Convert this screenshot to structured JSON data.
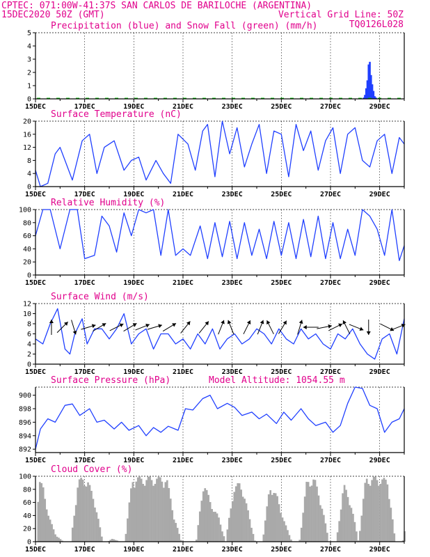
{
  "header": {
    "line1_left": "CPTEC:  071:00W-41:37S  SAN CARLOS DE BARILOCHE (ARGENTINA)",
    "line2_left": "15DEC2020 50Z (GMT)",
    "line2_right": "Vertical Grid Line: 50Z",
    "line3_right": "TQ0126L028"
  },
  "colors": {
    "series": "#1f3fff",
    "snow": "#00c000",
    "cloud": "#a9a9a9",
    "title": "#e1008c",
    "arrow": "#000000"
  },
  "x_tick_labels": [
    "15DEC",
    "17DEC",
    "19DEC",
    "21DEC",
    "23DEC",
    "25DEC",
    "27DEC",
    "29DEC"
  ],
  "chart_data": [
    {
      "type": "bar",
      "title": "Precipitation (blue) and Snow Fall (green) (mm/h)",
      "x_range_days": [
        0,
        15
      ],
      "ylim": [
        0,
        5
      ],
      "yticks": [
        0,
        1,
        2,
        3,
        4,
        5
      ],
      "series": [
        {
          "name": "Precipitation",
          "x": [
            13.35,
            13.4,
            13.45,
            13.5,
            13.55,
            13.6,
            13.65,
            13.7,
            13.75,
            13.8,
            13.85
          ],
          "values": [
            0.1,
            0.3,
            0.8,
            1.4,
            2.6,
            2.8,
            1.8,
            1.1,
            0.6,
            0.2,
            0.1
          ]
        },
        {
          "name": "Snow Fall",
          "x": [
            0,
            15
          ],
          "values": [
            0,
            0
          ]
        }
      ]
    },
    {
      "type": "line",
      "title": "Surface Temperature (nC)",
      "x_range_days": [
        0,
        15
      ],
      "ylim": [
        0,
        20
      ],
      "yticks": [
        0,
        4,
        8,
        12,
        16,
        20
      ],
      "x": [
        0,
        0.2,
        0.5,
        0.8,
        1.0,
        1.2,
        1.5,
        1.9,
        2.2,
        2.5,
        2.8,
        3.2,
        3.6,
        3.9,
        4.2,
        4.5,
        4.9,
        5.2,
        5.5,
        5.8,
        6.2,
        6.5,
        6.8,
        7.0,
        7.3,
        7.6,
        7.9,
        8.2,
        8.5,
        8.8,
        9.1,
        9.4,
        9.7,
        10.0,
        10.3,
        10.6,
        10.9,
        11.2,
        11.5,
        11.8,
        12.1,
        12.4,
        12.7,
        13.0,
        13.3,
        13.6,
        13.9,
        14.2,
        14.5,
        14.8,
        15.0
      ],
      "values": [
        5,
        0,
        1,
        10,
        12,
        8,
        2,
        14,
        16,
        4,
        12,
        14,
        5,
        8,
        9,
        2,
        8,
        4,
        1,
        16,
        13,
        5,
        17,
        19,
        3,
        20,
        10,
        18,
        6,
        13,
        19,
        4,
        17,
        16,
        3,
        19,
        11,
        17,
        5,
        14,
        18,
        4,
        16,
        18,
        8,
        6,
        14,
        16,
        4,
        15,
        13
      ]
    },
    {
      "type": "line",
      "title": "Relative Humidity (%)",
      "x_range_days": [
        0,
        15
      ],
      "ylim": [
        0,
        100
      ],
      "yticks": [
        0,
        20,
        40,
        60,
        80,
        100
      ],
      "x": [
        0,
        0.3,
        0.6,
        1.0,
        1.4,
        1.7,
        2.0,
        2.4,
        2.7,
        3.0,
        3.3,
        3.6,
        3.9,
        4.2,
        4.5,
        4.8,
        5.1,
        5.4,
        5.7,
        6.0,
        6.3,
        6.7,
        7.0,
        7.3,
        7.6,
        7.9,
        8.2,
        8.5,
        8.8,
        9.1,
        9.4,
        9.7,
        10.0,
        10.3,
        10.6,
        10.9,
        11.2,
        11.5,
        11.8,
        12.1,
        12.4,
        12.7,
        13.0,
        13.3,
        13.6,
        13.9,
        14.2,
        14.5,
        14.8,
        15.0
      ],
      "values": [
        60,
        100,
        100,
        40,
        100,
        100,
        25,
        30,
        90,
        75,
        35,
        95,
        60,
        100,
        95,
        100,
        30,
        100,
        30,
        40,
        30,
        75,
        25,
        80,
        28,
        82,
        25,
        80,
        30,
        70,
        25,
        82,
        30,
        80,
        25,
        85,
        28,
        90,
        25,
        80,
        25,
        70,
        30,
        100,
        90,
        70,
        30,
        100,
        22,
        45
      ]
    },
    {
      "type": "line",
      "title": "Surface Wind (m/s)",
      "x_range_days": [
        0,
        15
      ],
      "ylim": [
        0,
        12
      ],
      "yticks": [
        0,
        2,
        4,
        6,
        8,
        10,
        12
      ],
      "x": [
        0,
        0.3,
        0.6,
        0.9,
        1.2,
        1.4,
        1.6,
        1.9,
        2.1,
        2.4,
        2.7,
        3.0,
        3.3,
        3.6,
        3.9,
        4.2,
        4.5,
        4.8,
        5.1,
        5.4,
        5.7,
        6.0,
        6.3,
        6.6,
        6.9,
        7.2,
        7.5,
        7.8,
        8.1,
        8.4,
        8.7,
        9.0,
        9.3,
        9.6,
        9.9,
        10.2,
        10.5,
        10.8,
        11.1,
        11.4,
        11.7,
        12.0,
        12.3,
        12.6,
        12.9,
        13.2,
        13.5,
        13.8,
        14.1,
        14.4,
        14.7,
        15.0
      ],
      "values": [
        5,
        4,
        8,
        11,
        3,
        2,
        6,
        9,
        4,
        7,
        7,
        5,
        7,
        10,
        4,
        6,
        7,
        3,
        6,
        6,
        4,
        5,
        3,
        6,
        4,
        7,
        3,
        5,
        6,
        4,
        5,
        7,
        6,
        4,
        7,
        5,
        4,
        7,
        5,
        6,
        4,
        3,
        6,
        5,
        7,
        4,
        2,
        1,
        5,
        6,
        2,
        9
      ]
    },
    {
      "type": "line",
      "title": "Surface Pressure (hPa)",
      "annotation": "Model Altitude: 1054.55 m",
      "x_range_days": [
        0,
        15
      ],
      "ylim": [
        891.5,
        901.2
      ],
      "yticks": [
        892,
        894,
        896,
        898,
        900
      ],
      "x": [
        0,
        0.2,
        0.5,
        0.8,
        1.2,
        1.5,
        1.8,
        2.2,
        2.5,
        2.8,
        3.2,
        3.5,
        3.8,
        4.2,
        4.5,
        4.8,
        5.1,
        5.4,
        5.8,
        6.1,
        6.4,
        6.8,
        7.1,
        7.4,
        7.8,
        8.1,
        8.4,
        8.8,
        9.1,
        9.4,
        9.8,
        10.1,
        10.4,
        10.8,
        11.1,
        11.4,
        11.8,
        12.1,
        12.4,
        12.7,
        13.0,
        13.3,
        13.6,
        13.9,
        14.2,
        14.5,
        14.8,
        15.0
      ],
      "values": [
        892,
        895,
        896.5,
        896,
        898.5,
        898.7,
        897,
        898,
        896,
        896.3,
        895,
        896,
        894.8,
        895.5,
        894,
        895.2,
        894.5,
        895.4,
        894.8,
        898,
        897.8,
        899.5,
        900,
        898,
        898.8,
        898.2,
        897,
        897.5,
        896.5,
        897.2,
        895.8,
        897.5,
        896.3,
        898,
        896.5,
        895.5,
        896,
        894.5,
        895.5,
        898.8,
        901.2,
        901,
        898.5,
        898,
        894.5,
        896,
        896.5,
        898
      ]
    },
    {
      "type": "area",
      "title": "Cloud Cover (%)",
      "x_range_days": [
        0,
        15
      ],
      "ylim": [
        0,
        100
      ],
      "yticks": [
        0,
        20,
        40,
        60,
        80,
        100
      ],
      "x": [
        0,
        0.1,
        0.3,
        0.5,
        0.8,
        1.1,
        1.4,
        1.7,
        1.9,
        2.1,
        2.4,
        2.7,
        2.9,
        3.1,
        3.4,
        3.6,
        3.9,
        4.1,
        4.4,
        4.7,
        5.0,
        5.3,
        5.6,
        5.9,
        6.2,
        6.5,
        6.8,
        7.1,
        7.4,
        7.7,
        8.0,
        8.3,
        8.6,
        8.9,
        9.2,
        9.5,
        9.8,
        10.1,
        10.4,
        10.7,
        11.0,
        11.3,
        11.6,
        11.9,
        12.2,
        12.5,
        12.8,
        13.1,
        13.4,
        13.7,
        14.0,
        14.3,
        14.6,
        14.9,
        15.0
      ],
      "values": [
        0,
        95,
        85,
        40,
        10,
        0,
        0,
        95,
        100,
        95,
        60,
        0,
        0,
        5,
        0,
        0,
        100,
        100,
        100,
        100,
        100,
        100,
        40,
        0,
        0,
        0,
        95,
        60,
        40,
        0,
        80,
        95,
        50,
        0,
        0,
        90,
        70,
        30,
        0,
        0,
        95,
        100,
        60,
        0,
        0,
        90,
        60,
        0,
        100,
        100,
        100,
        95,
        0,
        0,
        20
      ]
    }
  ],
  "wind_arrows": [
    {
      "day": 0.65,
      "dx": 0,
      "dy": 1
    },
    {
      "day": 1.1,
      "dx": 1,
      "dy": 1
    },
    {
      "day": 1.55,
      "dx": 0.3,
      "dy": -1
    },
    {
      "day": 2.15,
      "dx": 1,
      "dy": 0.3
    },
    {
      "day": 2.6,
      "dx": 1,
      "dy": 0.6
    },
    {
      "day": 3.3,
      "dx": 1,
      "dy": 0.5
    },
    {
      "day": 3.85,
      "dx": 1,
      "dy": 0.6
    },
    {
      "day": 4.35,
      "dx": 1,
      "dy": 0.4
    },
    {
      "day": 4.85,
      "dx": 1,
      "dy": 0.3
    },
    {
      "day": 5.45,
      "dx": 1,
      "dy": 0.6
    },
    {
      "day": 6.1,
      "dx": 0.8,
      "dy": 1
    },
    {
      "day": 6.85,
      "dx": 0.8,
      "dy": 1
    },
    {
      "day": 7.55,
      "dx": 0.4,
      "dy": 1
    },
    {
      "day": 7.95,
      "dx": -0.4,
      "dy": 1
    },
    {
      "day": 8.6,
      "dx": 0.5,
      "dy": 1
    },
    {
      "day": 9.15,
      "dx": 0.4,
      "dy": 1
    },
    {
      "day": 9.55,
      "dx": -0.5,
      "dy": 1
    },
    {
      "day": 10.05,
      "dx": 0.6,
      "dy": 1
    },
    {
      "day": 10.75,
      "dx": 0.3,
      "dy": 1
    },
    {
      "day": 11.2,
      "dx": -1,
      "dy": 0
    },
    {
      "day": 11.75,
      "dx": 1,
      "dy": 0.2
    },
    {
      "day": 12.2,
      "dx": 1,
      "dy": 0.5
    },
    {
      "day": 12.65,
      "dx": -0.5,
      "dy": 1
    },
    {
      "day": 13.05,
      "dx": 1,
      "dy": -0.4
    },
    {
      "day": 13.55,
      "dx": 0,
      "dy": -1
    },
    {
      "day": 14.3,
      "dx": 1,
      "dy": -0.5
    },
    {
      "day": 14.75,
      "dx": 1,
      "dy": 0.4
    }
  ]
}
